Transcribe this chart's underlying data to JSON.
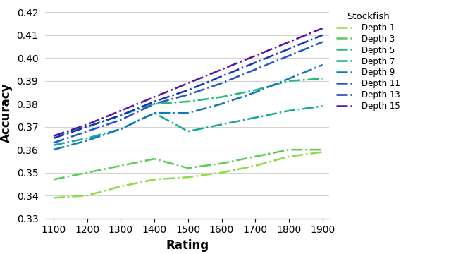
{
  "title": "",
  "xlabel": "Rating",
  "ylabel": "Accuracy",
  "xlim": [
    1075,
    1920
  ],
  "ylim": [
    0.33,
    0.422
  ],
  "yticks": [
    0.33,
    0.34,
    0.35,
    0.36,
    0.37,
    0.38,
    0.39,
    0.4,
    0.41,
    0.42
  ],
  "xticks": [
    1100,
    1200,
    1300,
    1400,
    1500,
    1600,
    1700,
    1800,
    1900
  ],
  "legend_title": "Stockfish",
  "x": [
    1100,
    1200,
    1300,
    1400,
    1500,
    1600,
    1700,
    1800,
    1900
  ],
  "series": [
    {
      "label": "Depth 1",
      "color": "#88dd44",
      "vals": [
        0.339,
        0.34,
        0.344,
        0.347,
        0.348,
        0.35,
        0.353,
        0.357,
        0.359
      ]
    },
    {
      "label": "Depth 3",
      "color": "#55cc55",
      "vals": [
        0.347,
        0.35,
        0.353,
        0.356,
        0.352,
        0.354,
        0.357,
        0.36,
        0.36
      ]
    },
    {
      "label": "Depth 5",
      "color": "#22bb77",
      "vals": [
        0.366,
        0.37,
        0.375,
        0.38,
        0.381,
        0.383,
        0.386,
        0.39,
        0.391
      ]
    },
    {
      "label": "Depth 7",
      "color": "#11aa99",
      "vals": [
        0.362,
        0.365,
        0.369,
        0.376,
        0.368,
        0.371,
        0.374,
        0.377,
        0.379
      ]
    },
    {
      "label": "Depth 9",
      "color": "#1177bb",
      "vals": [
        0.36,
        0.364,
        0.369,
        0.376,
        0.376,
        0.38,
        0.385,
        0.391,
        0.397
      ]
    },
    {
      "label": "Depth 11",
      "color": "#2255cc",
      "vals": [
        0.363,
        0.368,
        0.373,
        0.38,
        0.384,
        0.389,
        0.395,
        0.401,
        0.407
      ]
    },
    {
      "label": "Depth 13",
      "color": "#1133bb",
      "vals": [
        0.365,
        0.37,
        0.375,
        0.381,
        0.386,
        0.392,
        0.398,
        0.404,
        0.41
      ]
    },
    {
      "label": "Depth 15",
      "color": "#5511aa",
      "vals": [
        0.366,
        0.371,
        0.377,
        0.383,
        0.389,
        0.395,
        0.401,
        0.407,
        0.413
      ]
    }
  ]
}
